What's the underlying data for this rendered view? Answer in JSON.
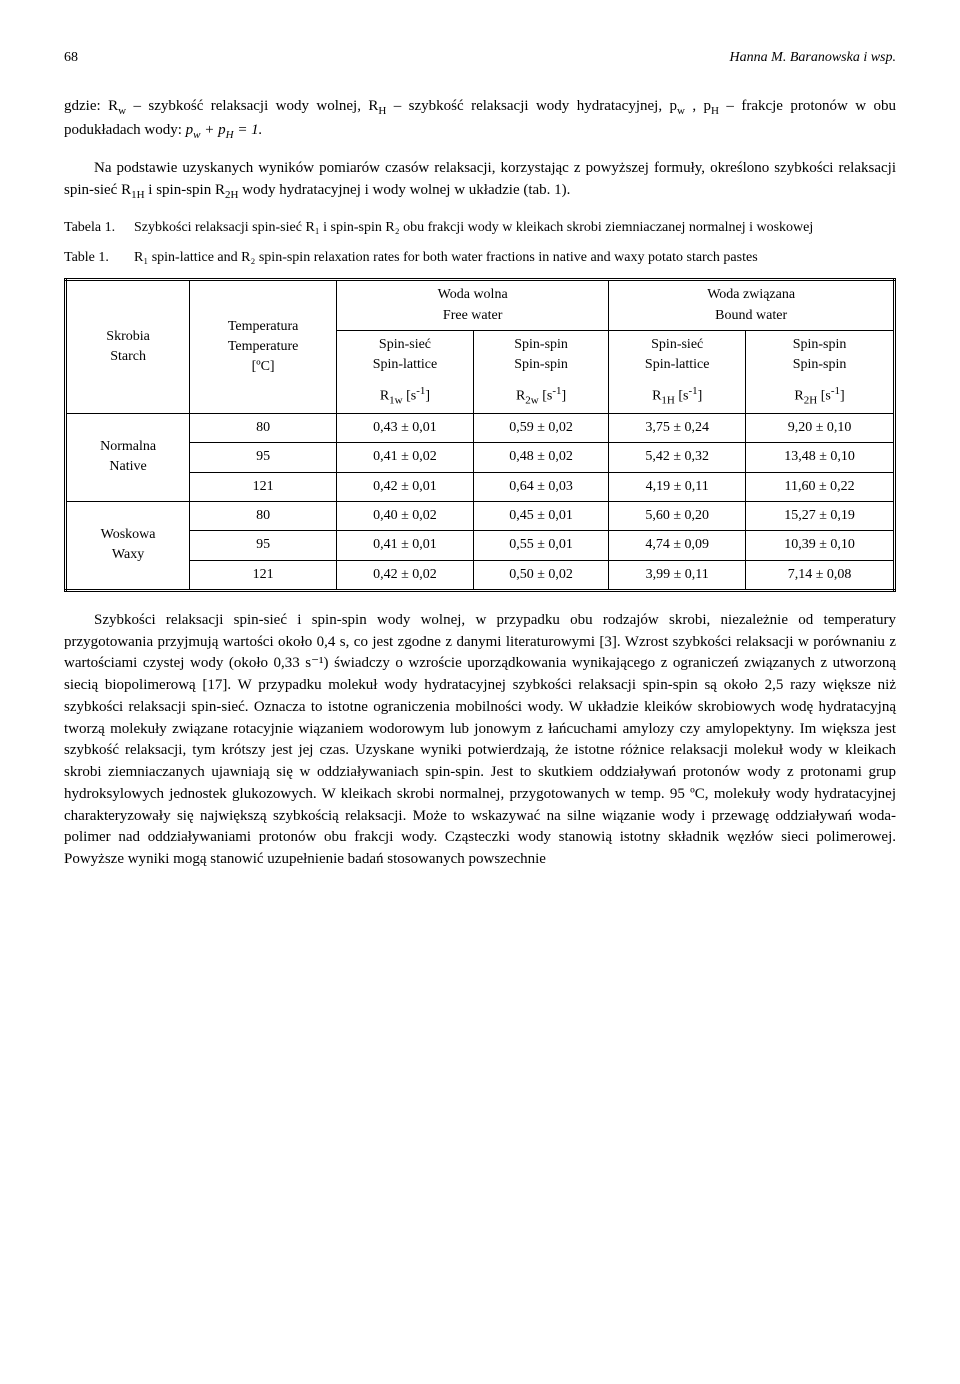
{
  "pageNumber": "68",
  "runningHead": "Hanna M. Baranowska i wsp.",
  "para1a": "gdzie: R",
  "para1b": " – szybkość relaksacji wody wolnej, R",
  "para1c": " – szybkość relaksacji wody hydratacyjnej, p",
  "para1d": ", p",
  "para1e": " – frakcje protonów w obu podukładach wody: ",
  "eq1": "p",
  "eq1p": " + p",
  "eq1end": " = 1.",
  "para2": "Na podstawie uzyskanych wyników pomiarów czasów relaksacji, korzystając z powyższej formuły, określono szybkości relaksacji spin-sieć R",
  "para2b": " i spin-spin R",
  "para2c": " wody hydratacyjnej i wody wolnej w układzie (tab. 1).",
  "captionPL_label": "Tabela 1.",
  "captionPL_text": "Szybkości relaksacji spin-sieć R₁ i spin-spin R₂ obu frakcji wody w kleikach skrobi ziemniaczanej normalnej i woskowej",
  "captionEN_label": "Table 1.",
  "captionEN_text": "R₁ spin-lattice and R₂ spin-spin relaxation rates for both water fractions in native and waxy potato starch pastes",
  "headers": {
    "starchPL": "Skrobia",
    "starchEN": "Starch",
    "tempPL": "Temperatura",
    "tempEN": "Temperature",
    "tempUnit": "[ºC]",
    "freePL": "Woda wolna",
    "freeEN": "Free water",
    "boundPL": "Woda związana",
    "boundEN": "Bound water",
    "spinSiecPL": "Spin-sieć",
    "spinSiecEN": "Spin-lattice",
    "spinSpinPL": "Spin-spin",
    "spinSpinEN": "Spin-spin",
    "R1w": "R",
    "R1w_sub": "1w",
    "R2w": "R",
    "R2w_sub": "2w",
    "R1H": "R",
    "R1H_sub": "1H",
    "R2H": "R",
    "R2H_sub": "2H",
    "unit": " [s",
    "unit_sup": "-1",
    "unit_end": "]"
  },
  "starch": {
    "nativePL": "Normalna",
    "nativeEN": "Native",
    "waxyPL": "Woskowa",
    "waxyEN": "Waxy"
  },
  "rows": [
    {
      "t": "80",
      "r1w": "0,43 ± 0,01",
      "r2w": "0,59 ± 0,02",
      "r1h": "3,75 ± 0,24",
      "r2h": "9,20 ± 0,10"
    },
    {
      "t": "95",
      "r1w": "0,41 ± 0,02",
      "r2w": "0,48 ± 0,02",
      "r1h": "5,42 ± 0,32",
      "r2h": "13,48 ± 0,10"
    },
    {
      "t": "121",
      "r1w": "0,42 ± 0,01",
      "r2w": "0,64 ± 0,03",
      "r1h": "4,19 ± 0,11",
      "r2h": "11,60 ± 0,22"
    },
    {
      "t": "80",
      "r1w": "0,40 ± 0,02",
      "r2w": "0,45 ± 0,01",
      "r1h": "5,60 ± 0,20",
      "r2h": "15,27 ± 0,19"
    },
    {
      "t": "95",
      "r1w": "0,41 ± 0,01",
      "r2w": "0,55 ± 0,01",
      "r1h": "4,74 ± 0,09",
      "r2h": "10,39 ± 0,10"
    },
    {
      "t": "121",
      "r1w": "0,42 ± 0,02",
      "r2w": "0,50 ± 0,02",
      "r1h": "3,99 ± 0,11",
      "r2h": "7,14 ± 0,08"
    }
  ],
  "para3": "Szybkości relaksacji spin-sieć i spin-spin wody wolnej, w przypadku obu rodzajów skrobi, niezależnie od temperatury przygotowania przyjmują wartości około 0,4 s, co jest zgodne z danymi literaturowymi [3]. Wzrost szybkości relaksacji w porównaniu z wartościami czystej wody (około 0,33 s⁻¹) świadczy o wzroście uporządkowania wynikającego z ograniczeń związanych z utworzoną siecią biopolimerową [17]. W przypadku molekuł wody hydratacyjnej szybkości relaksacji spin-spin są około 2,5 razy większe niż szybkości relaksacji spin-sieć. Oznacza to istotne ograniczenia mobilności wody. W układzie kleików skrobiowych wodę hydratacyjną tworzą molekuły związane rotacyjnie wiązaniem wodorowym lub jonowym z łańcuchami amylozy czy amylopektyny. Im większa jest szybkość relaksacji, tym krótszy jest jej czas. Uzyskane wyniki potwierdzają, że istotne różnice relaksacji molekuł wody w kleikach skrobi ziemniaczanych ujawniają się w oddziaływaniach spin-spin. Jest to skutkiem oddziaływań protonów wody z protonami grup hydroksylowych jednostek glukozowych. W kleikach skrobi normalnej, przygotowanych w temp. 95 ºC, molekuły wody hydratacyjnej charakteryzowały się największą szybkością relaksacji. Może to wskazywać na silne wiązanie wody i przewagę oddziaływań woda-polimer nad oddziaływaniami protonów obu frakcji wody. Cząsteczki wody stanowią istotny składnik węzłów sieci polimerowej. Powyższe wyniki mogą stanowić uzupełnienie badań stosowanych powszechnie"
}
